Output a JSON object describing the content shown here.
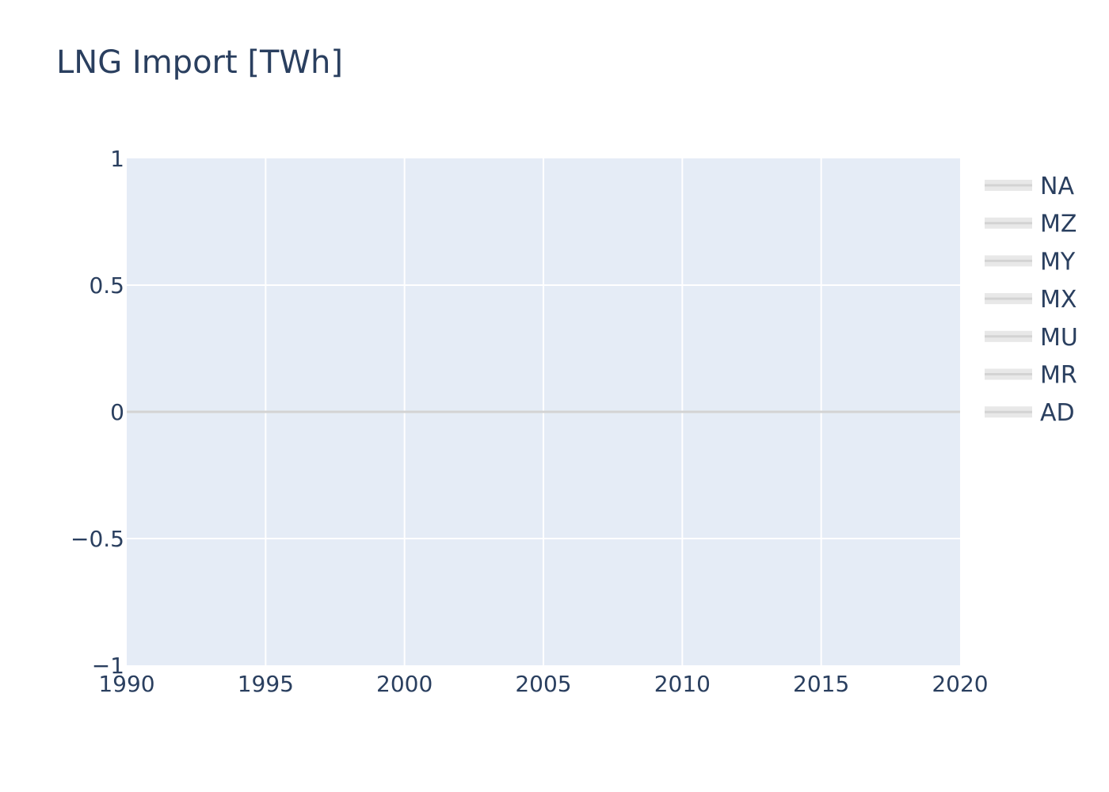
{
  "chart_data": {
    "type": "line",
    "title": "LNG Import [TWh]",
    "xlabel": "",
    "ylabel": "",
    "xlim": [
      1990,
      2020
    ],
    "ylim": [
      -1,
      1
    ],
    "x_ticks": [
      "1990",
      "1995",
      "2000",
      "2005",
      "2010",
      "2015",
      "2020"
    ],
    "y_ticks": [
      {
        "value": 1,
        "label": "1"
      },
      {
        "value": 0.5,
        "label": "0.5"
      },
      {
        "value": 0,
        "label": "0"
      },
      {
        "value": -0.5,
        "label": "−0.5"
      },
      {
        "value": -1,
        "label": "−1"
      }
    ],
    "grid": true,
    "legend_position": "right",
    "series": [
      {
        "name": "NA",
        "color": "#d3d3d3",
        "x": [
          1990,
          2020
        ],
        "y": [
          0,
          0
        ]
      },
      {
        "name": "MZ",
        "color": "#d3d3d3",
        "x": [
          1990,
          2020
        ],
        "y": [
          0,
          0
        ]
      },
      {
        "name": "MY",
        "color": "#d3d3d3",
        "x": [
          1990,
          2020
        ],
        "y": [
          0,
          0
        ]
      },
      {
        "name": "MX",
        "color": "#d3d3d3",
        "x": [
          1990,
          2020
        ],
        "y": [
          0,
          0
        ]
      },
      {
        "name": "MU",
        "color": "#d3d3d3",
        "x": [
          1990,
          2020
        ],
        "y": [
          0,
          0
        ]
      },
      {
        "name": "MR",
        "color": "#d3d3d3",
        "x": [
          1990,
          2020
        ],
        "y": [
          0,
          0
        ]
      },
      {
        "name": "AD",
        "color": "#d3d3d3",
        "x": [
          1990,
          2020
        ],
        "y": [
          0,
          0
        ]
      }
    ],
    "colors": {
      "plot_background": "#e5ecf6",
      "grid": "#ffffff",
      "text": "#2a3f5f"
    }
  }
}
